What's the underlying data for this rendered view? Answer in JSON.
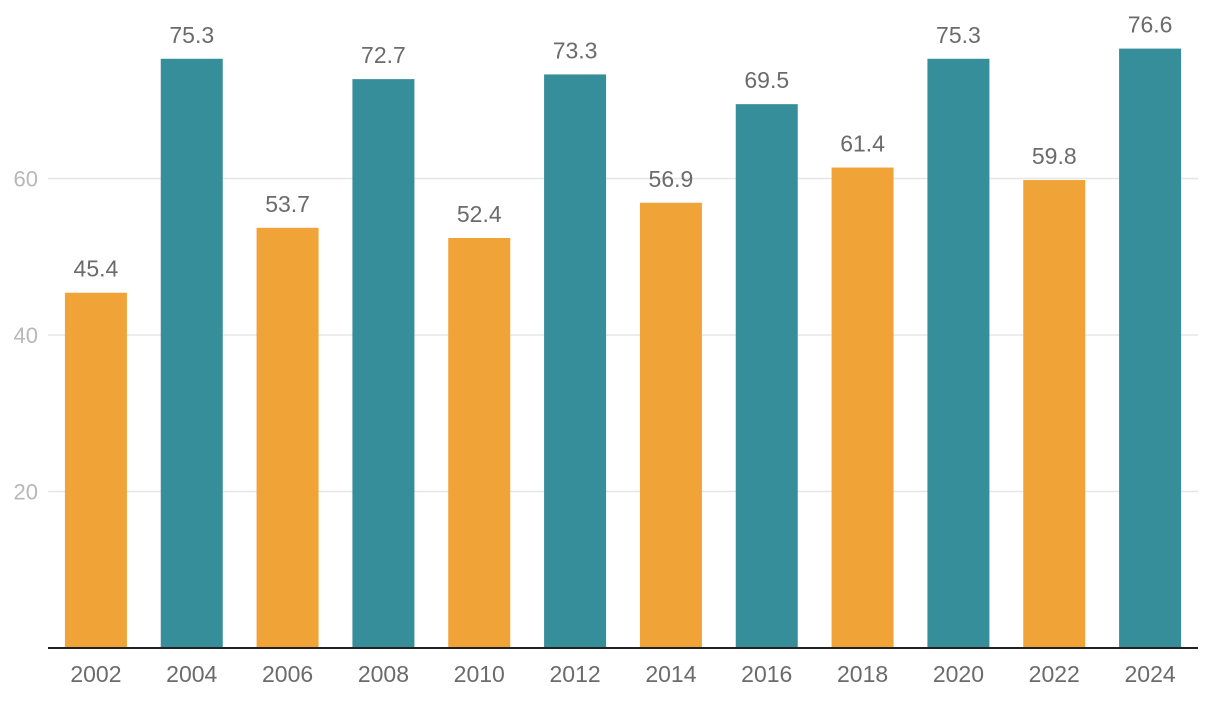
{
  "chart_data": {
    "type": "bar",
    "title": "",
    "xlabel": "",
    "ylabel": "",
    "categories": [
      "2002",
      "2004",
      "2006",
      "2008",
      "2010",
      "2012",
      "2014",
      "2016",
      "2018",
      "2020",
      "2022",
      "2024"
    ],
    "values": [
      45.4,
      75.3,
      53.7,
      72.7,
      52.4,
      73.3,
      56.9,
      69.5,
      61.4,
      75.3,
      59.8,
      76.6
    ],
    "data_labels": [
      "45.4",
      "75.3",
      "53.7",
      "72.7",
      "52.4",
      "73.3",
      "56.9",
      "69.5",
      "61.4",
      "75.3",
      "59.8",
      "76.6"
    ],
    "bar_colors": [
      "#f0a337",
      "#358e99",
      "#f0a337",
      "#358e99",
      "#f0a337",
      "#358e99",
      "#f0a337",
      "#358e99",
      "#f0a337",
      "#358e99",
      "#f0a337",
      "#358e99"
    ],
    "yticks": [
      20,
      40,
      60
    ],
    "ytick_labels": [
      "20",
      "40",
      "60"
    ],
    "ylim": [
      0,
      80
    ],
    "grid": true,
    "legend": "none"
  }
}
